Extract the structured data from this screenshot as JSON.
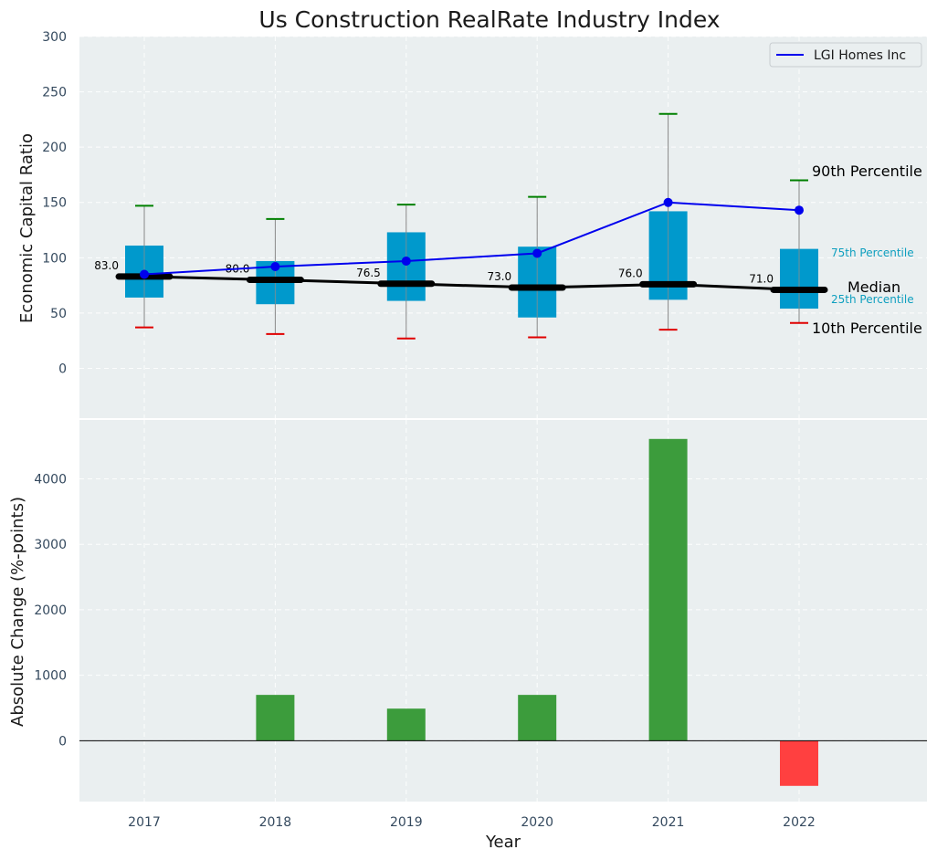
{
  "chart_data": [
    {
      "type": "box",
      "title": "Us Construction RealRate Industry Index",
      "ylabel": "Economic Capital Ratio",
      "ylim": [
        -45,
        300
      ],
      "yticks": [
        0,
        50,
        100,
        150,
        200,
        250,
        300
      ],
      "grid": true,
      "legend_position": "top-right",
      "categories": [
        "2017",
        "2018",
        "2019",
        "2020",
        "2021",
        "2022"
      ],
      "p10": [
        37,
        31,
        27,
        28,
        35,
        41
      ],
      "p25": [
        64,
        58,
        61,
        46,
        62,
        54
      ],
      "median": [
        83.0,
        80.0,
        76.5,
        73.0,
        76.0,
        71.0
      ],
      "median_labels": [
        "83.0",
        "80.0",
        "76.5",
        "73.0",
        "76.0",
        "71.0"
      ],
      "p75": [
        111,
        97,
        123,
        110,
        142,
        108
      ],
      "p90": [
        147,
        135,
        148,
        155,
        230,
        170
      ],
      "series": [
        {
          "name": "LGI Homes Inc",
          "values": [
            85,
            92,
            97,
            104,
            150,
            143
          ],
          "color": "#0000ee"
        }
      ],
      "annotations": {
        "p90": "90th Percentile",
        "p75": "75th Percentile",
        "median": "Median",
        "p25": "25th Percentile",
        "p10": "10th Percentile"
      },
      "colors": {
        "box": "#0099cc",
        "median": "#000000",
        "p90_cap": "#008000",
        "p10_cap": "#e00000",
        "background": "#eaeff0"
      }
    },
    {
      "type": "bar",
      "ylabel": "Absolute Change (%-points)",
      "xlabel": "Year",
      "ylim": [
        -930,
        4900
      ],
      "yticks": [
        0,
        1000,
        2000,
        3000,
        4000
      ],
      "grid": true,
      "categories": [
        "2017",
        "2018",
        "2019",
        "2020",
        "2021",
        "2022"
      ],
      "values": [
        0,
        700,
        490,
        700,
        4610,
        -690
      ],
      "colors": {
        "positive": "#3c9c3c",
        "negative": "#ff4040",
        "background": "#eaeff0"
      }
    }
  ]
}
